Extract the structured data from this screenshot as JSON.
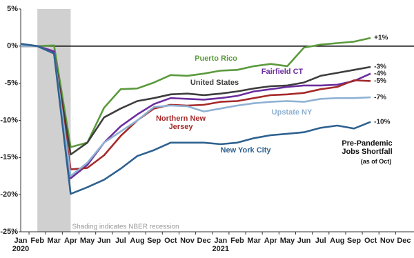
{
  "chart_data": {
    "type": "line",
    "categories": [
      "Jan",
      "Feb",
      "Mar",
      "Apr",
      "May",
      "Jun",
      "Jul",
      "Aug",
      "Sep",
      "Oct",
      "Nov",
      "Dec",
      "Jan",
      "Feb",
      "Mar",
      "Apr",
      "May",
      "Jun",
      "Jul",
      "Aug",
      "Sep",
      "Oct",
      "Nov",
      "Dec"
    ],
    "year_labels": [
      "2020",
      null,
      null,
      null,
      null,
      null,
      null,
      null,
      null,
      null,
      null,
      null,
      "2021",
      null,
      null,
      null,
      null,
      null,
      null,
      null,
      null,
      null,
      null,
      null
    ],
    "ylim": [
      -25,
      5
    ],
    "yticks": [
      {
        "value": -25,
        "label": "-25%"
      },
      {
        "value": -20,
        "label": "-20%"
      },
      {
        "value": -15,
        "label": "-15%"
      },
      {
        "value": -10,
        "label": "-10%"
      },
      {
        "value": -5,
        "label": "-5%"
      },
      {
        "value": 0,
        "label": "0%"
      },
      {
        "value": 5,
        "label": "5%"
      }
    ],
    "zero_line": true,
    "shading_note": "Shading indicates NBER recession",
    "annotation": "Pre-Pandemic Jobs Shortfall",
    "annotation_note": "(as of Oct)",
    "series": [
      {
        "name": "Puerto Rico",
        "color": "#5b9a3c",
        "values": [
          0,
          0,
          0.1,
          -13.6,
          -13,
          -8.3,
          -5.8,
          -5.7,
          -4.9,
          -3.9,
          -4,
          -3.7,
          -3.3,
          -3.2,
          -2.7,
          -2.4,
          -2.7,
          -0.2,
          0.2,
          0.4,
          0.6,
          1.1,
          null,
          null
        ],
        "value_labels": [
          null,
          null,
          null,
          null,
          null,
          null,
          null,
          null,
          null,
          null,
          null,
          null,
          null,
          null,
          null,
          null,
          null,
          null,
          null,
          null,
          null,
          "+1%",
          null,
          null
        ]
      },
      {
        "name": "United States",
        "color": "#3d3d3d",
        "values": [
          0,
          0,
          -0.9,
          -14.6,
          -13,
          -9.6,
          -8.4,
          -7.4,
          -7,
          -6.5,
          -6.4,
          -6.6,
          -6.4,
          -6.1,
          -5.7,
          -5.4,
          -5.3,
          -4.9,
          -4,
          -3.6,
          -3.2,
          -2.8,
          null,
          null
        ],
        "value_labels": [
          null,
          null,
          null,
          null,
          null,
          null,
          null,
          null,
          null,
          null,
          null,
          null,
          null,
          null,
          null,
          null,
          null,
          null,
          null,
          null,
          null,
          "-3%",
          null,
          null
        ]
      },
      {
        "name": "Fairfield CT",
        "color": "#6b2d9e",
        "values": [
          0.3,
          0,
          -0.7,
          -17.8,
          -16,
          -13,
          -10.8,
          -9.2,
          -7.8,
          -7,
          -7.1,
          -7.2,
          -7,
          -6.7,
          -6.1,
          -5.8,
          -5.5,
          -5.3,
          -5.3,
          -5.2,
          -4.7,
          -3.7,
          null,
          null
        ],
        "value_labels": [
          null,
          null,
          null,
          null,
          null,
          null,
          null,
          null,
          null,
          null,
          null,
          null,
          null,
          null,
          null,
          null,
          null,
          null,
          null,
          null,
          null,
          "-4%",
          null,
          null
        ]
      },
      {
        "name": "Northern New Jersey",
        "color": "#a52a2a",
        "values": [
          0,
          0,
          -1,
          -16.6,
          -16.4,
          -14.7,
          -12.1,
          -10,
          -8.4,
          -7.9,
          -8,
          -7.9,
          -7.5,
          -7.4,
          -7,
          -6.6,
          -6.5,
          -6.3,
          -5.8,
          -5.5,
          -4.6,
          -4.7,
          null,
          null
        ],
        "value_labels": [
          null,
          null,
          null,
          null,
          null,
          null,
          null,
          null,
          null,
          null,
          null,
          null,
          null,
          null,
          null,
          null,
          null,
          null,
          null,
          null,
          null,
          "-5%",
          null,
          null
        ]
      },
      {
        "name": "Upstate NY",
        "color": "#8fb1d3",
        "values": [
          0,
          0,
          -1,
          -17.5,
          -15.7,
          -13,
          -11.5,
          -10,
          -8.2,
          -8,
          -8.1,
          -8.8,
          -8.4,
          -8,
          -7.7,
          -7.5,
          -7.4,
          -7.5,
          -7.1,
          -7,
          -7,
          -6.9,
          null,
          null
        ],
        "value_labels": [
          null,
          null,
          null,
          null,
          null,
          null,
          null,
          null,
          null,
          null,
          null,
          null,
          null,
          null,
          null,
          null,
          null,
          null,
          null,
          null,
          null,
          "-7%",
          null,
          null
        ]
      },
      {
        "name": "New York City",
        "color": "#2e6190",
        "values": [
          0.3,
          0,
          -1,
          -19.9,
          -19,
          -18,
          -16.5,
          -14.8,
          -14,
          -13,
          -13,
          -13,
          -13.2,
          -13,
          -12.4,
          -12,
          -11.8,
          -11.6,
          -11,
          -10.7,
          -11.1,
          -10.2,
          null,
          null
        ],
        "value_labels": [
          null,
          null,
          null,
          null,
          null,
          null,
          null,
          null,
          null,
          null,
          null,
          null,
          null,
          null,
          null,
          null,
          null,
          null,
          null,
          null,
          null,
          "-10%",
          null,
          null
        ]
      }
    ]
  }
}
